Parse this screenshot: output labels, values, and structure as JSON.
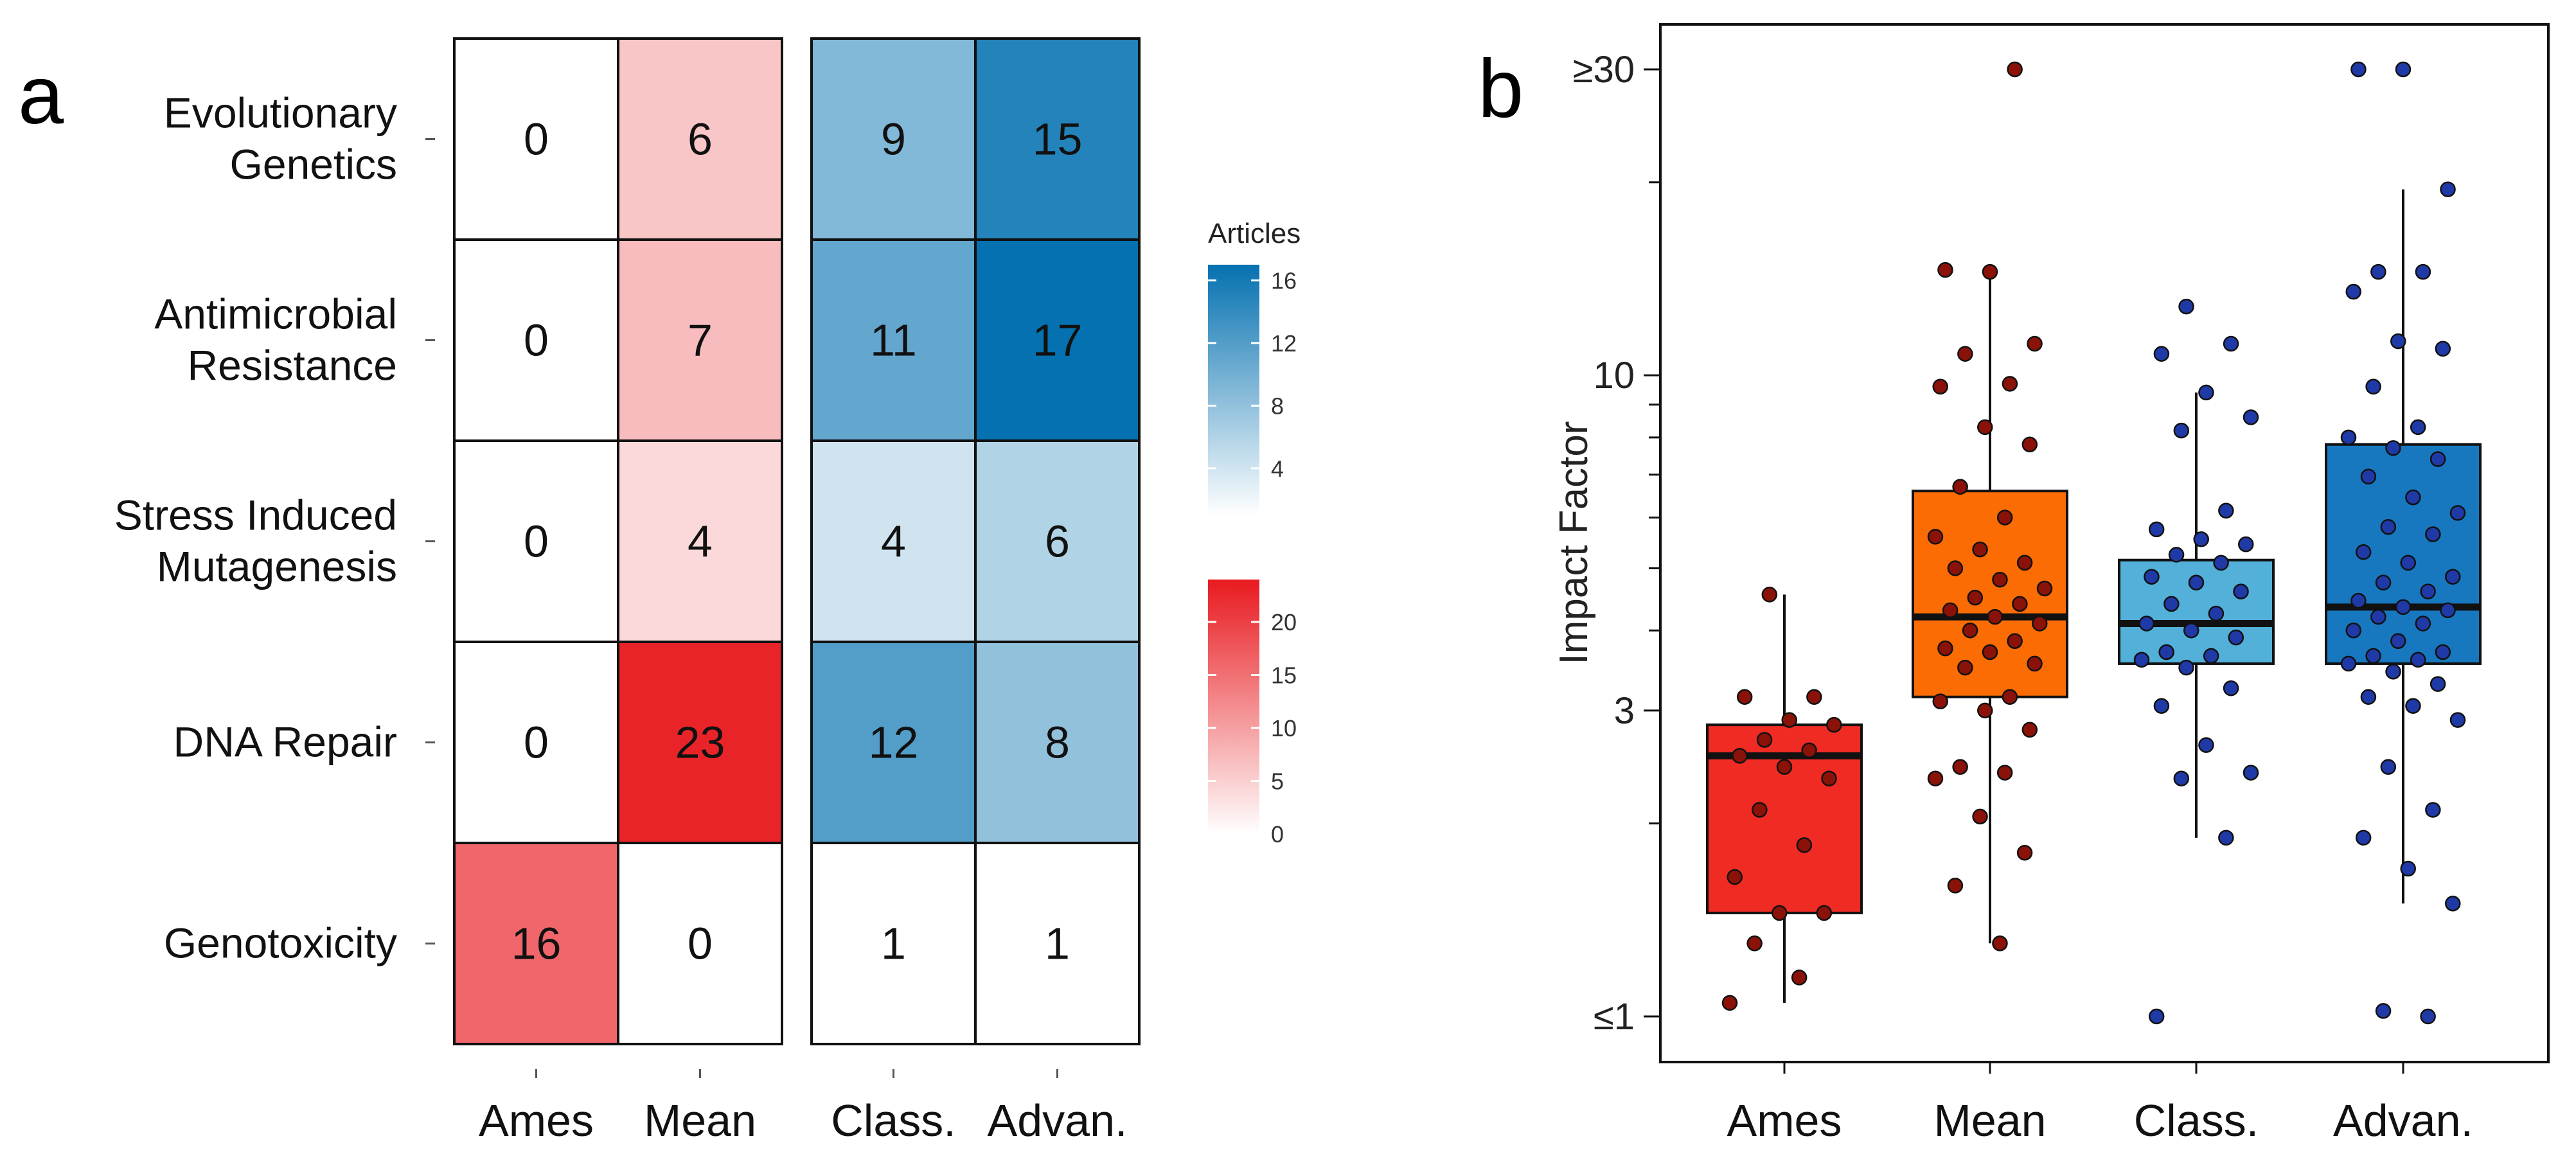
{
  "panels": {
    "a": "a",
    "b": "b"
  },
  "chart_data": [
    {
      "type": "heatmap",
      "title": "",
      "rows": [
        "Evolutionary Genetics",
        "Antimicrobial Resistance",
        "Stress Induced Mutagenesis",
        "DNA Repair",
        "Genotoxicity"
      ],
      "row_label_lines": [
        [
          "Evolutionary",
          "Genetics"
        ],
        [
          "Antimicrobial",
          "Resistance"
        ],
        [
          "Stress Induced",
          "Mutagenesis"
        ],
        [
          "DNA Repair"
        ],
        [
          "Genotoxicity"
        ]
      ],
      "columns": [
        "Ames",
        "Mean",
        "Class.",
        "Advan."
      ],
      "red_block_columns": [
        "Ames",
        "Mean"
      ],
      "blue_block_columns": [
        "Class.",
        "Advan."
      ],
      "values": [
        [
          0,
          6,
          9,
          15
        ],
        [
          0,
          7,
          11,
          17
        ],
        [
          0,
          4,
          4,
          6
        ],
        [
          0,
          23,
          12,
          8
        ],
        [
          16,
          0,
          1,
          1
        ]
      ],
      "legend_blue": {
        "title": "Articles",
        "range": [
          1,
          17
        ],
        "ticks": [
          4,
          8,
          12,
          16
        ]
      },
      "legend_red": {
        "title": "",
        "range": [
          0,
          24
        ],
        "ticks": [
          0,
          5,
          10,
          15,
          20
        ]
      },
      "colors": {
        "blue_high": "#0571b0",
        "red_high": "#e81a1f"
      }
    },
    {
      "type": "box",
      "title": "",
      "xlabel": "",
      "ylabel": "Impact Factor",
      "yscale": "log",
      "ylim": [
        0.95,
        36
      ],
      "ytick_values": [
        1,
        3,
        10,
        30
      ],
      "ytick_labels": [
        "≤1",
        "3",
        "10",
        "≥30"
      ],
      "categories": [
        "Ames",
        "Mean",
        "Class.",
        "Advan."
      ],
      "box_colors": [
        "#ef2b24",
        "#fb6c04",
        "#52b0d9",
        "#1778bf"
      ],
      "point_colors": [
        "#8b1208",
        "#8b1208",
        "#1f3aa6",
        "#1f3aa6"
      ],
      "boxes": [
        {
          "name": "Ames",
          "q1": 1.45,
          "median": 2.55,
          "q3": 2.85,
          "whisker_low": 1.05,
          "whisker_high": 4.55
        },
        {
          "name": "Mean",
          "q1": 3.15,
          "median": 4.2,
          "q3": 6.6,
          "whisker_low": 1.3,
          "whisker_high": 14.5
        },
        {
          "name": "Class.",
          "q1": 3.55,
          "median": 4.1,
          "q3": 5.15,
          "whisker_low": 1.9,
          "whisker_high": 9.4
        },
        {
          "name": "Advan.",
          "q1": 3.55,
          "median": 4.35,
          "q3": 7.8,
          "whisker_low": 1.5,
          "whisker_high": 19.5
        }
      ],
      "points": [
        [
          1.05,
          1.15,
          1.3,
          1.45,
          1.45,
          1.65,
          1.85,
          2.1,
          2.35,
          2.45,
          2.55,
          2.6,
          2.7,
          2.85,
          2.9,
          3.15,
          3.15,
          4.55
        ],
        [
          1.3,
          1.6,
          1.8,
          2.05,
          2.35,
          2.4,
          2.45,
          2.8,
          3.0,
          3.1,
          3.15,
          3.5,
          3.55,
          3.7,
          3.75,
          3.85,
          4.0,
          4.1,
          4.2,
          4.3,
          4.4,
          4.5,
          4.65,
          4.8,
          5.0,
          5.1,
          5.35,
          5.6,
          6.0,
          6.7,
          7.8,
          8.3,
          9.6,
          9.7,
          10.8,
          11.2,
          14.5,
          14.6,
          30
        ],
        [
          1.0,
          1.9,
          2.35,
          2.4,
          2.65,
          3.05,
          3.25,
          3.5,
          3.6,
          3.65,
          3.7,
          3.9,
          4.0,
          4.1,
          4.25,
          4.4,
          4.6,
          4.75,
          4.85,
          5.1,
          5.25,
          5.45,
          5.55,
          5.75,
          6.15,
          8.2,
          8.6,
          9.4,
          10.8,
          11.2,
          12.8
        ],
        [
          1.0,
          1.02,
          1.5,
          1.7,
          1.9,
          2.1,
          2.45,
          2.9,
          3.05,
          3.15,
          3.3,
          3.45,
          3.55,
          3.6,
          3.65,
          3.7,
          3.85,
          4.0,
          4.1,
          4.2,
          4.3,
          4.35,
          4.45,
          4.6,
          4.75,
          4.85,
          5.1,
          5.3,
          5.65,
          5.8,
          6.1,
          6.45,
          6.95,
          7.4,
          7.7,
          8.0,
          8.3,
          9.6,
          11.0,
          11.3,
          13.5,
          14.5,
          14.5,
          19.5,
          30,
          30
        ]
      ]
    }
  ]
}
